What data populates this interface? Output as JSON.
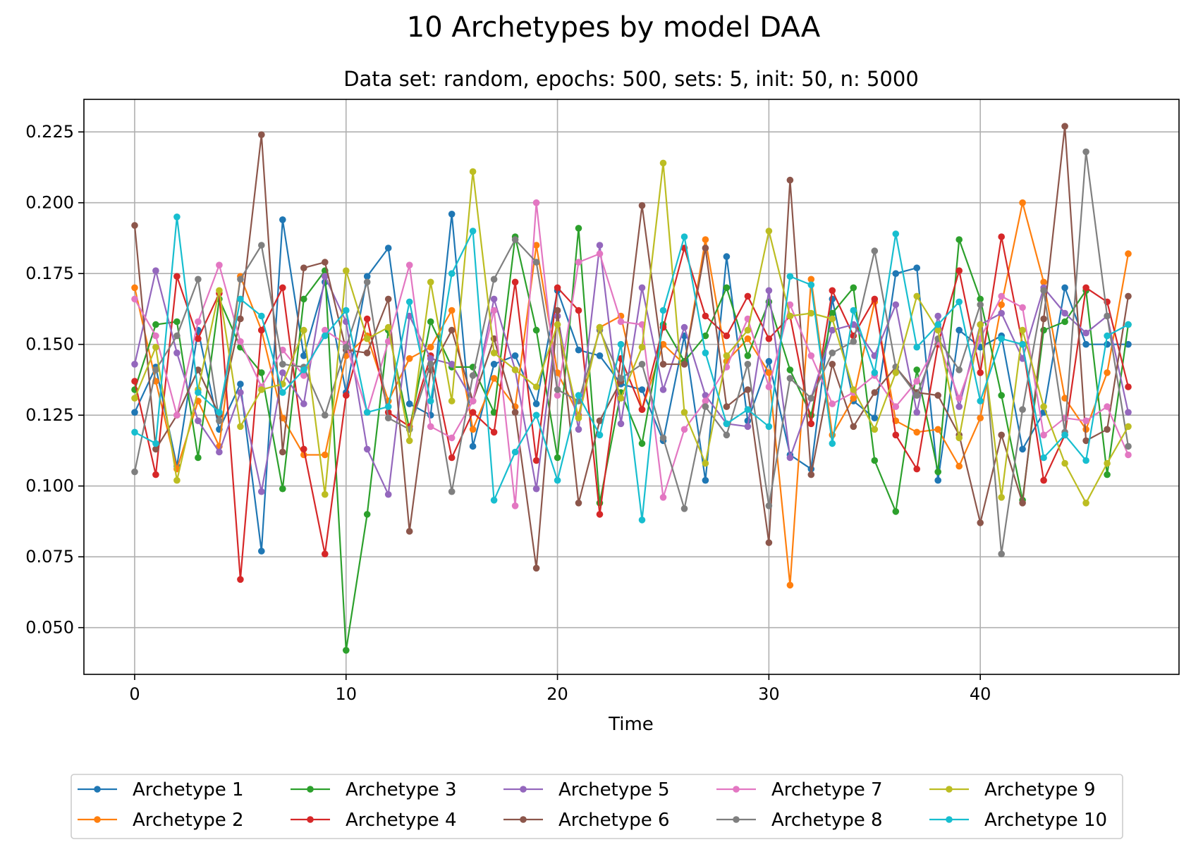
{
  "chart_data": {
    "type": "line",
    "title": "10 Archetypes by model DAA",
    "subtitle": "Data set: random, epochs: 500, sets: 5, init: 50, n: 5000",
    "xlabel": "Time",
    "ylabel": "",
    "xlim": [
      -2.4,
      49.4
    ],
    "ylim": [
      0.0335,
      0.2365
    ],
    "xticks": [
      0,
      10,
      20,
      30,
      40
    ],
    "xtick_labels": [
      "0",
      "10",
      "20",
      "30",
      "40"
    ],
    "yticks": [
      0.05,
      0.075,
      0.1,
      0.125,
      0.15,
      0.175,
      0.2,
      0.225
    ],
    "ytick_labels": [
      "0.050",
      "0.075",
      "0.100",
      "0.125",
      "0.150",
      "0.175",
      "0.200",
      "0.225"
    ],
    "grid": true,
    "legend_position": "bottom-center",
    "x": [
      0,
      1,
      2,
      3,
      4,
      5,
      6,
      7,
      8,
      9,
      10,
      11,
      12,
      13,
      14,
      15,
      16,
      17,
      18,
      19,
      20,
      21,
      22,
      23,
      24,
      25,
      26,
      27,
      28,
      29,
      30,
      31,
      32,
      33,
      34,
      35,
      36,
      37,
      38,
      39,
      40,
      41,
      42,
      43,
      44,
      45,
      46,
      47
    ],
    "series": [
      {
        "name": "Archetype 1",
        "color": "#1f77b4",
        "values": [
          0.126,
          0.142,
          0.107,
          0.155,
          0.12,
          0.136,
          0.077,
          0.194,
          0.146,
          0.172,
          0.133,
          0.174,
          0.184,
          0.129,
          0.125,
          0.196,
          0.114,
          0.143,
          0.146,
          0.129,
          0.169,
          0.148,
          0.146,
          0.136,
          0.134,
          0.116,
          0.153,
          0.102,
          0.181,
          0.123,
          0.144,
          0.111,
          0.106,
          0.166,
          0.13,
          0.124,
          0.175,
          0.177,
          0.102,
          0.155,
          0.149,
          0.153,
          0.113,
          0.126,
          0.17,
          0.15,
          0.15,
          0.15
        ]
      },
      {
        "name": "Archetype 2",
        "color": "#ff7f0e",
        "values": [
          0.17,
          0.137,
          0.106,
          0.13,
          0.114,
          0.174,
          0.155,
          0.124,
          0.111,
          0.111,
          0.146,
          0.153,
          0.13,
          0.145,
          0.149,
          0.162,
          0.12,
          0.138,
          0.128,
          0.185,
          0.14,
          0.125,
          0.156,
          0.16,
          0.127,
          0.15,
          0.143,
          0.187,
          0.144,
          0.152,
          0.14,
          0.065,
          0.173,
          0.118,
          0.131,
          0.165,
          0.123,
          0.119,
          0.12,
          0.107,
          0.124,
          0.164,
          0.2,
          0.172,
          0.131,
          0.12,
          0.14,
          0.182
        ]
      },
      {
        "name": "Archetype 3",
        "color": "#2ca02c",
        "values": [
          0.134,
          0.157,
          0.158,
          0.11,
          0.166,
          0.149,
          0.14,
          0.099,
          0.166,
          0.176,
          0.042,
          0.09,
          0.155,
          0.12,
          0.158,
          0.142,
          0.142,
          0.126,
          0.188,
          0.155,
          0.11,
          0.191,
          0.094,
          0.133,
          0.115,
          0.157,
          0.144,
          0.153,
          0.17,
          0.146,
          0.165,
          0.141,
          0.125,
          0.161,
          0.17,
          0.109,
          0.091,
          0.141,
          0.105,
          0.187,
          0.166,
          0.132,
          0.095,
          0.155,
          0.158,
          0.169,
          0.104,
          0.157
        ]
      },
      {
        "name": "Archetype 4",
        "color": "#d62728",
        "values": [
          0.137,
          0.104,
          0.174,
          0.152,
          0.168,
          0.067,
          0.155,
          0.17,
          0.113,
          0.076,
          0.132,
          0.159,
          0.126,
          0.121,
          0.146,
          0.11,
          0.126,
          0.119,
          0.172,
          0.109,
          0.17,
          0.162,
          0.09,
          0.145,
          0.127,
          0.156,
          0.184,
          0.16,
          0.153,
          0.167,
          0.152,
          0.16,
          0.122,
          0.169,
          0.153,
          0.166,
          0.118,
          0.106,
          0.15,
          0.176,
          0.14,
          0.188,
          0.15,
          0.102,
          0.118,
          0.17,
          0.165,
          0.135
        ]
      },
      {
        "name": "Archetype 5",
        "color": "#9467bd",
        "values": [
          0.143,
          0.176,
          0.147,
          0.123,
          0.112,
          0.133,
          0.098,
          0.14,
          0.129,
          0.174,
          0.158,
          0.113,
          0.097,
          0.16,
          0.145,
          0.143,
          0.13,
          0.166,
          0.141,
          0.099,
          0.16,
          0.12,
          0.185,
          0.122,
          0.17,
          0.134,
          0.156,
          0.132,
          0.122,
          0.121,
          0.169,
          0.11,
          0.131,
          0.155,
          0.157,
          0.146,
          0.164,
          0.126,
          0.16,
          0.128,
          0.157,
          0.161,
          0.145,
          0.17,
          0.161,
          0.154,
          0.16,
          0.126
        ]
      },
      {
        "name": "Archetype 6",
        "color": "#8c564b",
        "values": [
          0.192,
          0.113,
          0.125,
          0.141,
          0.125,
          0.159,
          0.224,
          0.112,
          0.177,
          0.179,
          0.148,
          0.147,
          0.166,
          0.084,
          0.141,
          0.155,
          0.13,
          0.152,
          0.126,
          0.071,
          0.162,
          0.094,
          0.123,
          0.137,
          0.199,
          0.143,
          0.143,
          0.184,
          0.128,
          0.134,
          0.08,
          0.208,
          0.104,
          0.143,
          0.121,
          0.133,
          0.142,
          0.133,
          0.132,
          0.118,
          0.087,
          0.118,
          0.094,
          0.159,
          0.227,
          0.116,
          0.12,
          0.167
        ]
      },
      {
        "name": "Archetype 7",
        "color": "#e377c2",
        "values": [
          0.166,
          0.153,
          0.125,
          0.158,
          0.178,
          0.151,
          0.135,
          0.148,
          0.139,
          0.155,
          0.15,
          0.126,
          0.151,
          0.178,
          0.121,
          0.117,
          0.13,
          0.162,
          0.093,
          0.2,
          0.132,
          0.179,
          0.182,
          0.158,
          0.157,
          0.096,
          0.12,
          0.13,
          0.142,
          0.159,
          0.135,
          0.164,
          0.146,
          0.129,
          0.133,
          0.139,
          0.128,
          0.137,
          0.151,
          0.131,
          0.152,
          0.167,
          0.163,
          0.118,
          0.124,
          0.123,
          0.128,
          0.111
        ]
      },
      {
        "name": "Archetype 8",
        "color": "#7f7f7f",
        "values": [
          0.105,
          0.141,
          0.153,
          0.173,
          0.123,
          0.173,
          0.185,
          0.143,
          0.142,
          0.125,
          0.149,
          0.172,
          0.124,
          0.12,
          0.143,
          0.098,
          0.139,
          0.173,
          0.187,
          0.179,
          0.134,
          0.13,
          0.155,
          0.138,
          0.143,
          0.117,
          0.092,
          0.128,
          0.118,
          0.143,
          0.093,
          0.138,
          0.131,
          0.147,
          0.151,
          0.183,
          0.142,
          0.132,
          0.152,
          0.141,
          0.164,
          0.076,
          0.127,
          0.169,
          0.119,
          0.218,
          0.16,
          0.114
        ]
      },
      {
        "name": "Archetype 9",
        "color": "#bcbd22",
        "values": [
          0.131,
          0.149,
          0.102,
          0.134,
          0.169,
          0.121,
          0.134,
          0.136,
          0.155,
          0.097,
          0.176,
          0.152,
          0.156,
          0.116,
          0.172,
          0.13,
          0.211,
          0.147,
          0.141,
          0.135,
          0.157,
          0.124,
          0.156,
          0.131,
          0.149,
          0.214,
          0.126,
          0.108,
          0.146,
          0.155,
          0.19,
          0.16,
          0.161,
          0.159,
          0.134,
          0.12,
          0.14,
          0.167,
          0.155,
          0.117,
          0.157,
          0.096,
          0.155,
          0.128,
          0.108,
          0.094,
          0.108,
          0.121
        ]
      },
      {
        "name": "Archetype 10",
        "color": "#17becf",
        "values": [
          0.119,
          0.115,
          0.195,
          0.133,
          0.126,
          0.166,
          0.16,
          0.133,
          0.141,
          0.153,
          0.162,
          0.126,
          0.128,
          0.165,
          0.13,
          0.175,
          0.19,
          0.095,
          0.112,
          0.125,
          0.102,
          0.132,
          0.118,
          0.15,
          0.088,
          0.162,
          0.188,
          0.147,
          0.122,
          0.127,
          0.121,
          0.174,
          0.171,
          0.115,
          0.162,
          0.14,
          0.189,
          0.149,
          0.157,
          0.165,
          0.13,
          0.152,
          0.15,
          0.11,
          0.118,
          0.109,
          0.153,
          0.157
        ]
      }
    ]
  }
}
